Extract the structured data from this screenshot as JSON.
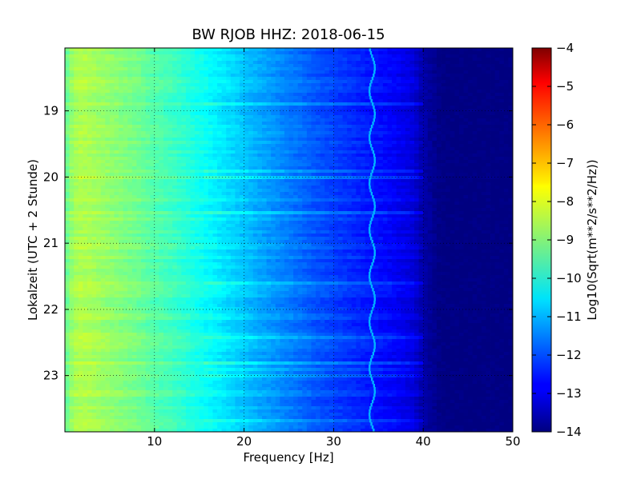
{
  "chart_data": {
    "type": "heatmap",
    "title": "BW RJOB HHZ: 2018-06-15",
    "xlabel": "Frequency [Hz]",
    "ylabel": "Lokalzeit (UTC + 2 Stunde)",
    "colorbar_label": "Log10(Sqrt(m**2/s**2/Hz))",
    "colormap": "jet",
    "xlim": [
      0,
      50
    ],
    "ylim": [
      18.05,
      23.85
    ],
    "y_inverted": true,
    "grid": true,
    "x_ticks": [
      10,
      20,
      30,
      40,
      50
    ],
    "x_tick_labels": [
      "10",
      "20",
      "30",
      "40",
      "50"
    ],
    "y_ticks": [
      19,
      20,
      21,
      22,
      23
    ],
    "y_tick_labels": [
      "19",
      "20",
      "21",
      "22",
      "23"
    ],
    "clim": [
      -14,
      -4
    ],
    "colorbar_ticks": [
      -4,
      -5,
      -6,
      -7,
      -8,
      -9,
      -10,
      -11,
      -12,
      -13,
      -14
    ],
    "colorbar_tick_labels": [
      "−4",
      "−5",
      "−6",
      "−7",
      "−8",
      "−9",
      "−10",
      "−11",
      "−12",
      "−13",
      "−14"
    ],
    "spectrum_profile": {
      "frequency_hz": [
        0,
        1,
        2,
        4,
        6,
        8,
        10,
        12,
        14,
        16,
        18,
        20,
        22,
        25,
        28,
        31,
        34,
        37,
        39,
        40,
        42,
        46,
        50
      ],
      "log10_amplitude": [
        -9.3,
        -8.6,
        -8.5,
        -8.7,
        -8.9,
        -9.1,
        -9.4,
        -9.6,
        -9.9,
        -10.2,
        -10.5,
        -10.8,
        -11.1,
        -11.5,
        -11.9,
        -12.2,
        -12.5,
        -12.8,
        -13.1,
        -13.6,
        -14.0,
        -14.0,
        -14.0
      ]
    },
    "spectral_line": {
      "frequency_hz": 34.3,
      "log10_amplitude": -11.0
    }
  }
}
